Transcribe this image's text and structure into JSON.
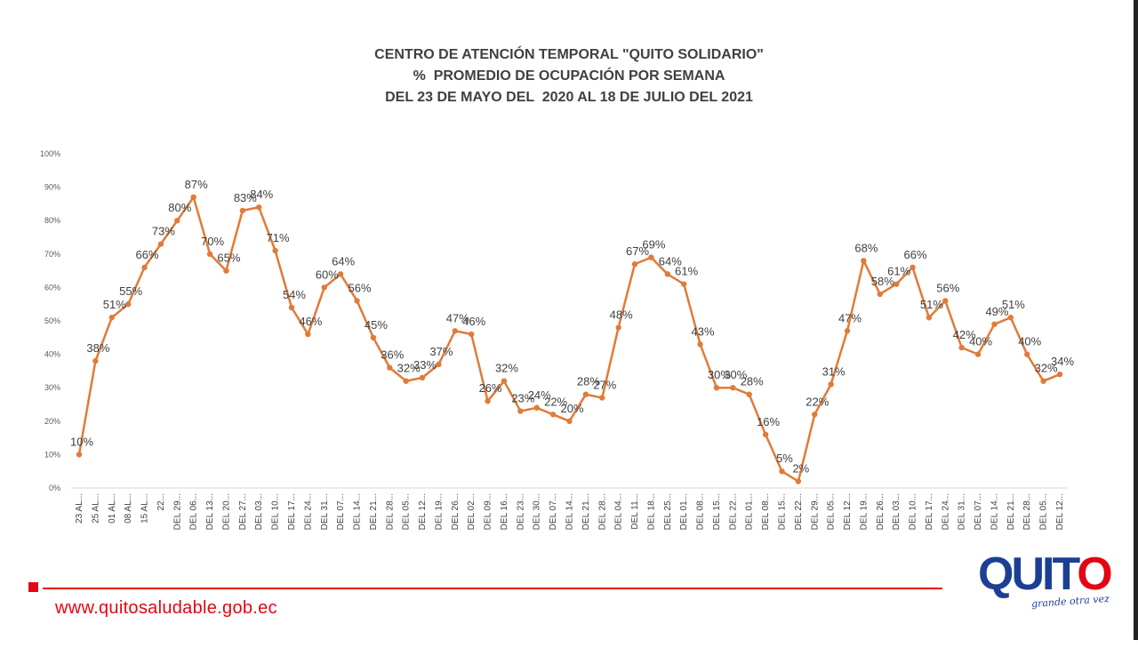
{
  "chart_data": {
    "type": "line",
    "title": "CENTRO DE ATENCIÓN TEMPORAL \"QUITO SOLIDARIO\"",
    "subtitle_lines": [
      "%  PROMEDIO DE OCUPACIÓN POR SEMANA",
      "DEL 23 DE MAYO DEL  2020 AL 18 DE JULIO DEL 2021"
    ],
    "ylim": [
      0,
      100
    ],
    "yticks": [
      "0%",
      "10%",
      "20%",
      "30%",
      "40%",
      "50%",
      "60%",
      "70%",
      "80%",
      "90%",
      "100%"
    ],
    "grid": false,
    "color": "#e07b39",
    "categories": [
      "23 AL...",
      "25 AL...",
      "01 AL...",
      "08 AL...",
      "15 AL...",
      "22...",
      "DEL 29...",
      "DEL 06...",
      "DEL 13...",
      "DEL 20...",
      "DEL 27...",
      "DEL 03...",
      "DEL 10...",
      "DEL 17...",
      "DEL 24...",
      "DEL 31...",
      "DEL 07...",
      "DEL 14...",
      "DEL 21...",
      "DEL 28...",
      "DEL 05...",
      "DEL 12...",
      "DEL 19...",
      "DEL 26...",
      "DEL 02...",
      "DEL 09...",
      "DEL 16...",
      "DEL 23...",
      "DEL 30...",
      "DEL 07...",
      "DEL 14...",
      "DEL 21...",
      "DEL 28...",
      "DEL 04...",
      "DEL 11...",
      "DEL 18...",
      "DEL 25...",
      "DEL 01...",
      "DEL 08...",
      "DEL 15...",
      "DEL 22...",
      "DEL 01...",
      "DEL 08...",
      "DEL 15...",
      "DEL 22...",
      "DEL 29...",
      "DEL 05...",
      "DEL 12...",
      "DEL 19...",
      "DEL 26...",
      "DEL 03...",
      "DEL 10...",
      "DEL 17...",
      "DEL 24...",
      "DEL 31...",
      "DEL 07...",
      "DEL 14...",
      "DEL 21...",
      "DEL 28...",
      "DEL 05...",
      "DEL 12..."
    ],
    "values": [
      10,
      38,
      51,
      55,
      66,
      73,
      80,
      87,
      70,
      65,
      83,
      84,
      71,
      54,
      46,
      60,
      64,
      56,
      45,
      36,
      32,
      33,
      37,
      47,
      46,
      26,
      32,
      23,
      24,
      22,
      20,
      28,
      27,
      48,
      67,
      69,
      64,
      61,
      43,
      30,
      30,
      28,
      16,
      5,
      2,
      22,
      31,
      47,
      68,
      58,
      61,
      66,
      51,
      56,
      42,
      40,
      49,
      51,
      40,
      32,
      34
    ],
    "labels": [
      "10%",
      "38%",
      "51%",
      "55%",
      "66%",
      "73%",
      "80%",
      "87%",
      "70%",
      "65%",
      "83%",
      "84%",
      "71%",
      "54%",
      "46%",
      "60%",
      "64%",
      "56%",
      "45%",
      "36%",
      "32%",
      "33%",
      "37%",
      "47%",
      "46%",
      "26%",
      "32%",
      "23%",
      "24%",
      "22%",
      "20%",
      "28%",
      "27%",
      "48%",
      "67%",
      "69%",
      "64%",
      "61%",
      "43%",
      "30%",
      "30%",
      "28%",
      "16%",
      "5%",
      "2%",
      "22%",
      "31%",
      "47%",
      "68%",
      "58%",
      "61%",
      "66%",
      "51%",
      "56%",
      "42%",
      "40%",
      "49%",
      "51%",
      "40%",
      "32%",
      "34%"
    ]
  },
  "footer": {
    "url": "www.quitosaludable.gob.ec",
    "accent_color": "#e30613"
  },
  "logo": {
    "word": "QUITO",
    "tagline": "grande otra vez"
  }
}
